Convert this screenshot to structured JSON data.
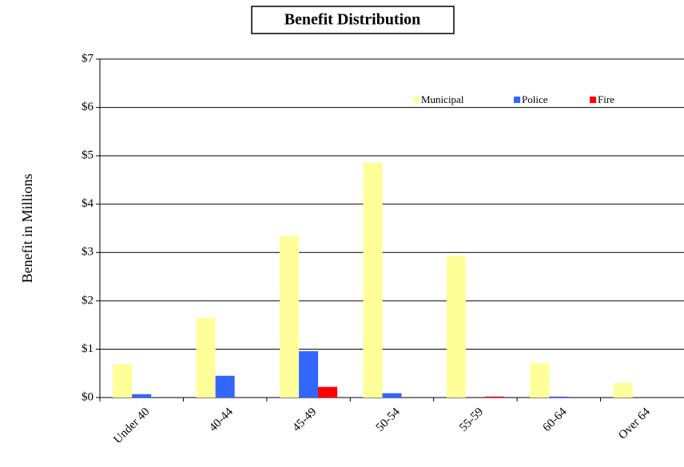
{
  "chart_data": {
    "type": "bar",
    "title": "Benefit Distribution",
    "y_label": "Benefit  in Millions",
    "categories": [
      "Under 40",
      "40-44",
      "45-49",
      "50-54",
      "55-59",
      "60-64",
      "Over 64"
    ],
    "series": [
      {
        "name": "Municipal",
        "color": "#ffff99",
        "values": [
          0.69,
          1.65,
          3.34,
          4.86,
          2.93,
          0.71,
          0.3
        ]
      },
      {
        "name": "Police",
        "color": "#3366ff",
        "values": [
          0.07,
          0.45,
          0.96,
          0.09,
          0,
          0.02,
          0
        ]
      },
      {
        "name": "Fire",
        "color": "#ff0000",
        "values": [
          0,
          0,
          0.22,
          0,
          0.02,
          0,
          0
        ]
      }
    ],
    "ylim": [
      0,
      7
    ],
    "yticks": [
      {
        "value": 0,
        "label": "$0"
      },
      {
        "value": 1,
        "label": "$1"
      },
      {
        "value": 2,
        "label": "$2"
      },
      {
        "value": 3,
        "label": "$3"
      },
      {
        "value": 4,
        "label": "$4"
      },
      {
        "value": 5,
        "label": "$5"
      },
      {
        "value": 6,
        "label": "$6"
      },
      {
        "value": 7,
        "label": "$7"
      }
    ],
    "grid": true,
    "legend": "top-right"
  }
}
